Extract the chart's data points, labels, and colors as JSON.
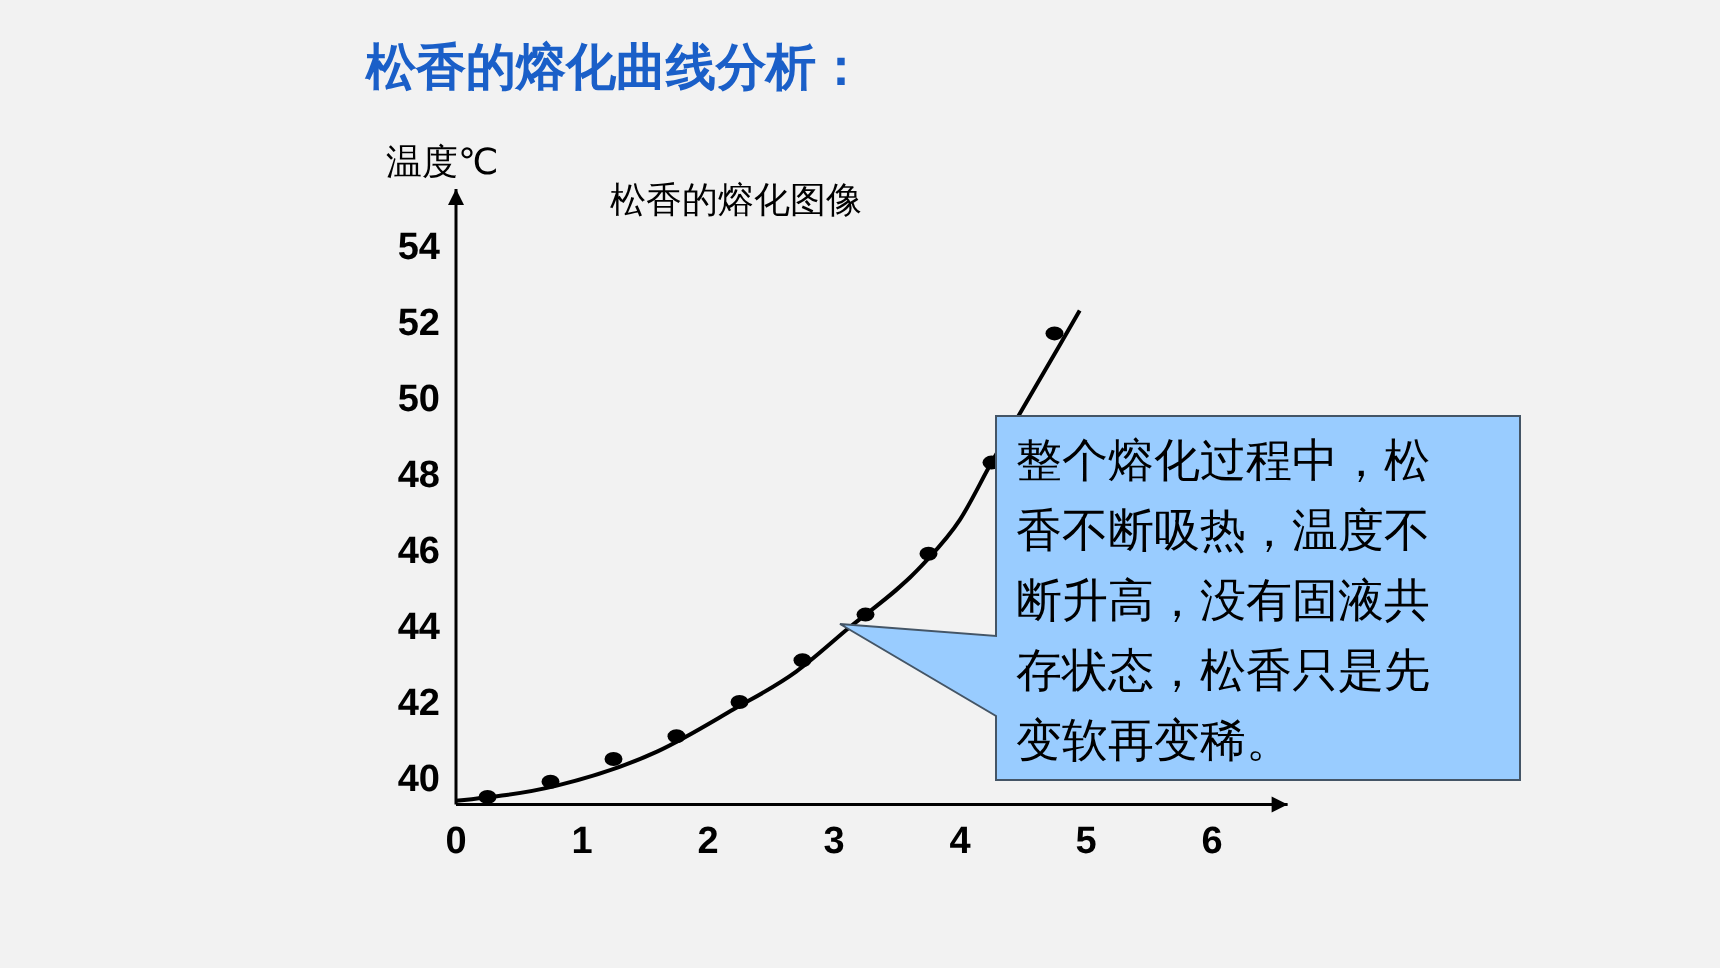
{
  "chart_data": {
    "type": "scatter",
    "title": "松香的熔化曲线分析：",
    "subtitle": "松香的熔化图像",
    "ylabel": "温度℃",
    "xlim": [
      0,
      6.6
    ],
    "ylim": [
      39.3,
      55.5
    ],
    "xticks": [
      0,
      1,
      2,
      3,
      4,
      5,
      6
    ],
    "yticks": [
      40,
      42,
      44,
      46,
      48,
      50,
      52,
      54
    ],
    "grid": false,
    "series": [
      {
        "marker": "circle",
        "color": "#000000",
        "x": [
          0.25,
          0.75,
          1.25,
          1.75,
          2.25,
          2.75,
          3.25,
          3.75,
          4.25,
          4.75
        ],
        "values": [
          39.5,
          39.9,
          40.5,
          41.1,
          42,
          43.1,
          44.3,
          45.9,
          48.3,
          51.7
        ]
      },
      {
        "type": "line",
        "color": "#000000",
        "line_style": "solid",
        "x": [
          0,
          0.8,
          1.6,
          2.2,
          2.7,
          3.1,
          3.7,
          4.0,
          4.25,
          4.6,
          4.95
        ],
        "values": [
          39.4,
          39.8,
          40.7,
          41.8,
          42.8,
          43.9,
          45.6,
          46.8,
          48.3,
          50.3,
          52.3
        ]
      }
    ],
    "annotations": [
      "整个熔化过程中，松香不断吸热，温度不断升高，没有固液共存状态，松香只是先变软再变稀。"
    ]
  }
}
